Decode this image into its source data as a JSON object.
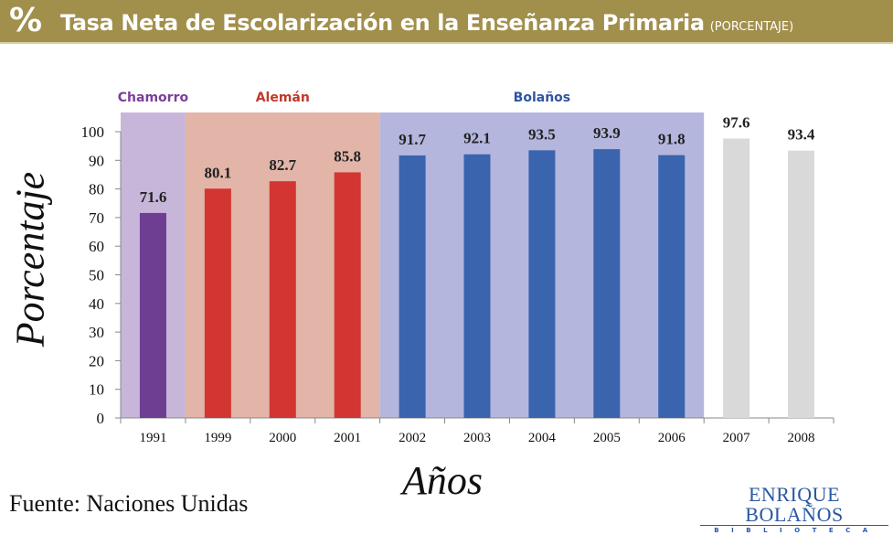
{
  "header": {
    "icon": "percent-sign",
    "title": "Tasa Neta de Escolarización en la Enseñanza Primaria",
    "subtitle": "(PORCENTAJE)"
  },
  "colors": {
    "header_bg": "#a18f4c",
    "chamorro_band": "#c7b6da",
    "aleman_band": "#e2b5a8",
    "bolanos_band": "#b4b6de",
    "chamorro_bar": "#6e3e93",
    "aleman_bar": "#d33532",
    "bolanos_bar": "#3a64ad",
    "future_bar": "#d9d9d9",
    "chamorro_label": "#7b3f98",
    "aleman_label": "#c0392b",
    "bolanos_label": "#2f54a0"
  },
  "chart_data": {
    "type": "bar",
    "title": "Tasa Neta de Escolarización en la Enseñanza Primaria (PORCENTAJE)",
    "xlabel": "Años",
    "ylabel": "Porcentaje",
    "ylim": [
      0,
      100
    ],
    "yticks": [
      0,
      10,
      20,
      30,
      40,
      50,
      60,
      70,
      80,
      90,
      100
    ],
    "grid": false,
    "categories": [
      "1991",
      "1999",
      "2000",
      "2001",
      "2002",
      "2003",
      "2004",
      "2005",
      "2006",
      "2007",
      "2008"
    ],
    "values": [
      71.6,
      80.1,
      82.7,
      85.8,
      91.7,
      92.1,
      93.5,
      93.9,
      91.8,
      97.6,
      93.4
    ],
    "value_labels": [
      "71.6",
      "80.1",
      "82.7",
      "85.8",
      "91.7",
      "92.1",
      "93.5",
      "93.9",
      "91.8",
      "97.6",
      "93.4"
    ],
    "groups": [
      {
        "name": "Chamorro",
        "categories": [
          "1991"
        ],
        "color_key": "chamorro"
      },
      {
        "name": "Alemán",
        "categories": [
          "1999",
          "2000",
          "2001"
        ],
        "color_key": "aleman"
      },
      {
        "name": "Bolaños",
        "categories": [
          "2002",
          "2003",
          "2004",
          "2005",
          "2006"
        ],
        "color_key": "bolanos"
      },
      {
        "name": "",
        "categories": [
          "2007",
          "2008"
        ],
        "color_key": "future"
      }
    ]
  },
  "footer": {
    "source": "Fuente: Naciones Unidas",
    "logo_line1": "ENRIQUE BOLAÑOS",
    "logo_line2": "BIBLIOTECA"
  }
}
